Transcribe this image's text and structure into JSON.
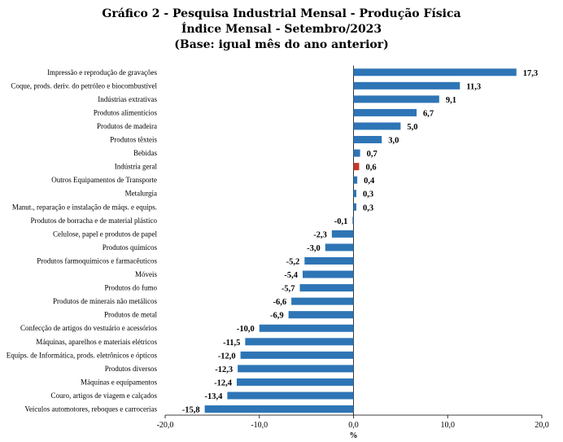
{
  "chart_data": {
    "type": "bar",
    "orientation": "horizontal",
    "title": "Gráfico 2 - Pesquisa Industrial Mensal - Produção Física",
    "subtitle": "Índice Mensal - Setembro/2023",
    "subtitle2": "(Base: igual mês do ano anterior)",
    "xlabel": "%",
    "xlim": [
      -20,
      20
    ],
    "xticks": [
      -20,
      -10,
      0,
      10,
      20
    ],
    "xtick_labels": [
      "-20,0",
      "-10,0",
      "0,0",
      "10,0",
      "20,0"
    ],
    "grid": false,
    "bar_color": "#2e75b6",
    "highlight_color": "#c0392b",
    "highlight_category": "Indústria geral",
    "categories": [
      "Impressão e reprodução de gravações",
      "Coque, prods. deriv. do petróleo e biocombustível",
      "Indústrias extrativas",
      "Produtos alimentícios",
      "Produtos de madeira",
      "Produtos têxteis",
      "Bebidas",
      "Indústria geral",
      "Outros Equipamentos de Transporte",
      "Metalurgia",
      "Manut., reparação e instalação de máqs. e equips.",
      "Produtos de borracha e de material plástico",
      "Celulose, papel e produtos de papel",
      "Produtos químicos",
      "Produtos farmoquímicos e farmacêuticos",
      "Móveis",
      "Produtos do fumo",
      "Produtos de minerais não metálicos",
      "Produtos de metal",
      "Confecção de artigos do vestuário e acessórios",
      "Máquinas, aparelhos e materiais elétricos",
      "Equips. de Informática, prods. eletrônicos e ópticos",
      "Produtos diversos",
      "Máquinas e equipamentos",
      "Couro, artigos de viagem e calçados",
      "Veículos automotores, reboques e carrocerias"
    ],
    "values": [
      17.3,
      11.3,
      9.1,
      6.7,
      5.0,
      3.0,
      0.7,
      0.6,
      0.4,
      0.3,
      0.3,
      -0.1,
      -2.3,
      -3.0,
      -5.2,
      -5.4,
      -5.7,
      -6.6,
      -6.9,
      -10.0,
      -11.5,
      -12.0,
      -12.3,
      -12.4,
      -13.4,
      -15.8
    ],
    "value_labels": [
      "17,3",
      "11,3",
      "9,1",
      "6,7",
      "5,0",
      "3,0",
      "0,7",
      "0,6",
      "0,4",
      "0,3",
      "0,3",
      "-0,1",
      "-2,3",
      "-3,0",
      "-5,2",
      "-5,4",
      "-5,7",
      "-6,6",
      "-6,9",
      "-10,0",
      "-11,5",
      "-12,0",
      "-12,3",
      "-12,4",
      "-13,4",
      "-15,8"
    ]
  }
}
